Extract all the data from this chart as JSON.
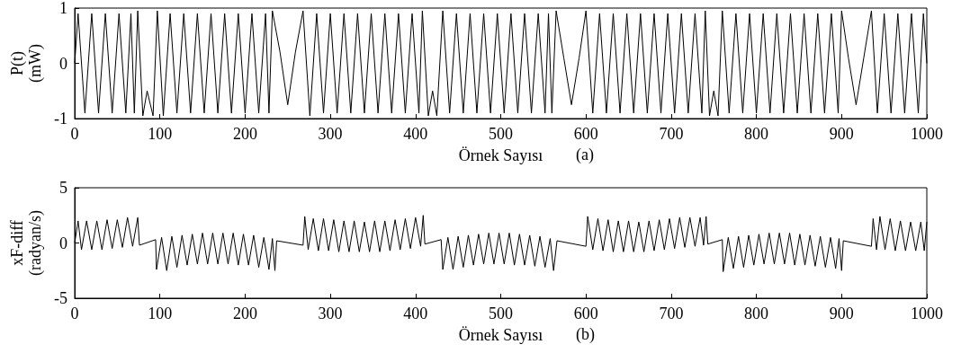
{
  "chart_data": [
    {
      "type": "line",
      "xlabel": "Örnek Sayısı",
      "ylabel": "P(t)\n(mW)",
      "annotations": [
        "(a)"
      ],
      "xlim": [
        0,
        1000
      ],
      "xticks": [
        0,
        100,
        200,
        300,
        400,
        500,
        600,
        700,
        800,
        900,
        1000
      ],
      "ylim": [
        -1,
        1
      ],
      "yticks": [
        -1,
        0,
        1
      ],
      "grid": false,
      "marker": "none",
      "line_style": "solid",
      "series": [
        {
          "color": "#000000",
          "x": [
            0,
            4,
            12,
            20,
            28,
            36,
            44,
            52,
            60,
            66,
            70,
            74,
            80,
            85,
            92,
            97,
            104,
            112,
            120,
            128,
            136,
            144,
            152,
            160,
            168,
            176,
            184,
            192,
            200,
            208,
            216,
            224,
            228,
            232,
            241,
            250,
            259,
            268,
            276,
            284,
            292,
            300,
            308,
            316,
            324,
            332,
            340,
            348,
            356,
            364,
            372,
            380,
            388,
            396,
            404,
            408,
            415,
            420,
            425,
            432,
            440,
            448,
            456,
            464,
            472,
            480,
            488,
            496,
            504,
            512,
            520,
            528,
            536,
            544,
            552,
            556,
            560,
            565,
            574,
            583,
            592,
            600,
            608,
            616,
            624,
            632,
            640,
            648,
            656,
            664,
            672,
            680,
            688,
            696,
            704,
            712,
            720,
            728,
            736,
            740,
            745,
            750,
            755,
            760,
            768,
            776,
            784,
            792,
            800,
            808,
            816,
            824,
            832,
            840,
            848,
            856,
            864,
            872,
            880,
            888,
            896,
            900,
            908,
            917,
            926,
            935,
            942,
            950,
            958,
            966,
            974,
            982,
            990,
            996,
            1000
          ],
          "values": [
            0,
            0.9,
            -0.9,
            0.9,
            -0.9,
            0.9,
            -0.9,
            0.9,
            -0.9,
            0.9,
            -0.9,
            0.95,
            -0.95,
            -0.5,
            -0.95,
            0.95,
            -0.95,
            0.9,
            -0.9,
            0.9,
            -0.9,
            0.9,
            -0.9,
            0.9,
            -0.9,
            0.9,
            -0.9,
            0.9,
            -0.9,
            0.9,
            -0.9,
            0.9,
            -0.9,
            0.95,
            0.2,
            -0.75,
            0.2,
            0.95,
            -0.95,
            0.9,
            -0.9,
            0.9,
            -0.9,
            0.9,
            -0.9,
            0.9,
            -0.9,
            0.9,
            -0.9,
            0.9,
            -0.9,
            0.9,
            -0.9,
            0.9,
            -0.9,
            0.95,
            -0.95,
            -0.5,
            -0.95,
            0.95,
            -0.9,
            0.9,
            -0.9,
            0.9,
            -0.9,
            0.9,
            -0.9,
            0.9,
            -0.9,
            0.9,
            -0.9,
            0.9,
            -0.9,
            0.9,
            -0.9,
            0.9,
            -0.9,
            0.95,
            0.1,
            -0.75,
            0.1,
            0.95,
            -0.9,
            0.9,
            -0.9,
            0.9,
            -0.9,
            0.9,
            -0.9,
            0.9,
            -0.9,
            0.9,
            -0.9,
            0.9,
            -0.9,
            0.9,
            -0.9,
            0.9,
            -0.9,
            0.95,
            -0.95,
            -0.5,
            -0.95,
            0.95,
            -0.9,
            0.9,
            -0.9,
            0.9,
            -0.9,
            0.9,
            -0.9,
            0.9,
            -0.9,
            0.9,
            -0.9,
            0.9,
            -0.9,
            0.9,
            -0.9,
            0.9,
            -0.9,
            0.95,
            0.1,
            -0.75,
            0.1,
            0.95,
            -0.9,
            0.9,
            -0.9,
            0.9,
            -0.9,
            0.9,
            -0.9,
            0.9,
            0
          ]
        }
      ]
    },
    {
      "type": "line",
      "xlabel": "Örnek Sayısı",
      "ylabel": "xF-diff\n(radyan/s)",
      "annotations": [
        "(b)"
      ],
      "xlim": [
        0,
        1000
      ],
      "xticks": [
        0,
        100,
        200,
        300,
        400,
        500,
        600,
        700,
        800,
        900,
        1000
      ],
      "ylim": [
        -5,
        5
      ],
      "yticks": [
        -5,
        0,
        5
      ],
      "grid": false,
      "marker": "none",
      "line_style": "solid",
      "series": [
        {
          "color": "#000000",
          "x": [
            0,
            4,
            8,
            14,
            20,
            26,
            32,
            38,
            44,
            50,
            56,
            62,
            68,
            74,
            76,
            95,
            96,
            102,
            108,
            114,
            120,
            126,
            132,
            138,
            144,
            150,
            156,
            162,
            168,
            174,
            180,
            186,
            192,
            198,
            204,
            210,
            216,
            222,
            228,
            232,
            235,
            237,
            268,
            270,
            274,
            280,
            286,
            292,
            298,
            304,
            310,
            316,
            322,
            328,
            334,
            340,
            346,
            352,
            358,
            364,
            370,
            376,
            382,
            388,
            394,
            400,
            406,
            409,
            411,
            430,
            432,
            438,
            444,
            450,
            456,
            462,
            468,
            474,
            480,
            486,
            492,
            498,
            504,
            510,
            516,
            522,
            528,
            534,
            540,
            546,
            552,
            558,
            562,
            566,
            600,
            602,
            608,
            614,
            620,
            626,
            632,
            638,
            644,
            650,
            656,
            662,
            668,
            674,
            680,
            686,
            692,
            698,
            704,
            710,
            716,
            722,
            728,
            734,
            738,
            741,
            743,
            760,
            761,
            767,
            773,
            779,
            785,
            791,
            797,
            803,
            809,
            815,
            821,
            827,
            833,
            839,
            845,
            851,
            857,
            863,
            869,
            875,
            881,
            887,
            893,
            897,
            900,
            902,
            935,
            937,
            941,
            945,
            951,
            957,
            963,
            969,
            975,
            981,
            987,
            993,
            997,
            1000
          ],
          "values": [
            0,
            2.0,
            -0.6,
            2.0,
            -0.6,
            2.0,
            -0.6,
            2.1,
            -0.5,
            2.1,
            -0.4,
            2.3,
            -0.3,
            2.3,
            -0.2,
            0.3,
            -2.4,
            0.5,
            -2.5,
            0.6,
            -2.2,
            0.7,
            -2.0,
            0.8,
            -1.9,
            0.9,
            -1.9,
            0.9,
            -1.9,
            0.9,
            -1.9,
            0.9,
            -2.0,
            0.8,
            -2.0,
            0.7,
            -2.2,
            0.5,
            -2.4,
            0.4,
            -2.5,
            0.2,
            -0.2,
            2.4,
            -0.6,
            2.2,
            -0.7,
            2.2,
            -0.7,
            2.1,
            -0.8,
            2.0,
            -0.8,
            2.0,
            -0.8,
            1.9,
            -0.8,
            2.0,
            -0.8,
            2.0,
            -0.7,
            2.1,
            -0.6,
            2.2,
            -0.5,
            2.3,
            -0.3,
            2.5,
            -0.1,
            0.3,
            -2.4,
            0.5,
            -2.4,
            0.6,
            -2.2,
            0.7,
            -2.0,
            0.8,
            -1.9,
            0.9,
            -1.9,
            0.9,
            -1.9,
            0.9,
            -2.0,
            0.8,
            -2.0,
            0.7,
            -2.1,
            0.6,
            -2.2,
            0.4,
            -2.5,
            0.2,
            -0.3,
            2.4,
            -0.6,
            2.2,
            -0.7,
            2.1,
            -0.8,
            2.0,
            -0.8,
            2.0,
            -0.8,
            1.9,
            -0.8,
            2.0,
            -0.7,
            2.1,
            -0.6,
            2.2,
            -0.5,
            2.3,
            -0.4,
            2.3,
            -0.3,
            2.3,
            -0.2,
            2.4,
            -0.1,
            0.3,
            -2.6,
            0.5,
            -2.3,
            0.6,
            -2.2,
            0.7,
            -2.0,
            0.8,
            -1.9,
            0.9,
            -1.9,
            0.9,
            -1.9,
            0.9,
            -2.0,
            0.8,
            -2.0,
            0.7,
            -2.1,
            0.6,
            -2.2,
            0.5,
            -2.3,
            0.4,
            -2.5,
            0.2,
            -0.3,
            2.2,
            -0.6,
            2.4,
            -0.6,
            2.2,
            -0.7,
            2.0,
            -0.7,
            1.9,
            -0.7,
            1.9,
            -0.7,
            1.9
          ]
        }
      ]
    }
  ]
}
